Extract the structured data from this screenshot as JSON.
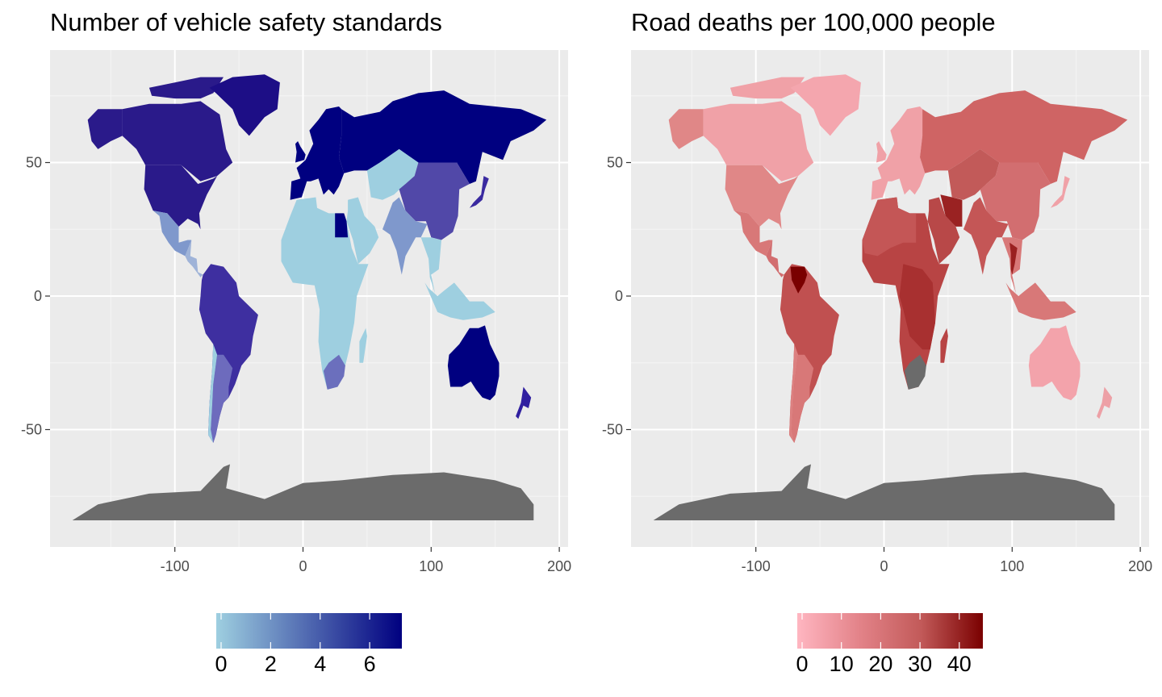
{
  "panels": [
    {
      "id": "left",
      "title": "Number of vehicle safety standards",
      "x_ticks": [
        "-100",
        "0",
        "100",
        "200"
      ],
      "y_ticks": [
        "50",
        "0",
        "-50"
      ],
      "legend": {
        "colors": [
          "#9ecfe0",
          "#000080"
        ],
        "ticks": [
          "0",
          "2",
          "4",
          "6"
        ]
      },
      "fills": {
        "north_america": "#2a1a8a",
        "mexico": "#7f98cc",
        "central_america": "#9fb3d8",
        "south_america": "#3e2fa0",
        "argentina": "#6d6bbd",
        "chile": "#9ecfe0",
        "greenland": "#1d0e86",
        "europe": "#000080",
        "russia": "#000080",
        "africa": "#9ecfe0",
        "egypt": "#000080",
        "south_africa": "#6b6fbd",
        "middle_east": "#9ecfe0",
        "central_asia": "#9ecfe0",
        "china": "#5148a8",
        "india": "#7f98cc",
        "se_asia": "#9ecfe0",
        "japan": "#3a2aa0",
        "australia": "#000080",
        "new_zealand": "#3020a0",
        "antarctica": "#6b6b6b",
        "no_data": "#6b6b6b"
      }
    },
    {
      "id": "right",
      "title": "Road deaths per 100,000 people",
      "x_ticks": [
        "-100",
        "0",
        "100",
        "200"
      ],
      "y_ticks": [
        "50",
        "0",
        "-50"
      ],
      "legend": {
        "colors": [
          "#ffb6c1",
          "#e38389",
          "#c25a59",
          "#7a0000"
        ],
        "ticks": [
          "0",
          "10",
          "20",
          "30",
          "40"
        ]
      },
      "fills": {
        "north_america": "#e08787",
        "canada": "#f0a1a7",
        "alaska": "#e08787",
        "mexico": "#d87878",
        "central_america": "#d26e70",
        "south_america": "#c05050",
        "argentina": "#d87878",
        "chile": "#dc8080",
        "venezuela": "#7a0000",
        "greenland": "#f4a6ae",
        "europe": "#f0a1a7",
        "russia": "#cf6464",
        "africa": "#b84444",
        "north_africa": "#c45656",
        "central_africa": "#a83030",
        "middle_east": "#b84848",
        "iran": "#9a2222",
        "central_asia": "#c25a59",
        "china": "#d26e70",
        "india": "#c45656",
        "se_asia": "#d87878",
        "thailand": "#9a2020",
        "japan": "#f0a1a7",
        "australia": "#f3a3ab",
        "new_zealand": "#eda0a6",
        "antarctica": "#6b6b6b",
        "no_data": "#6b6b6b"
      }
    }
  ]
}
